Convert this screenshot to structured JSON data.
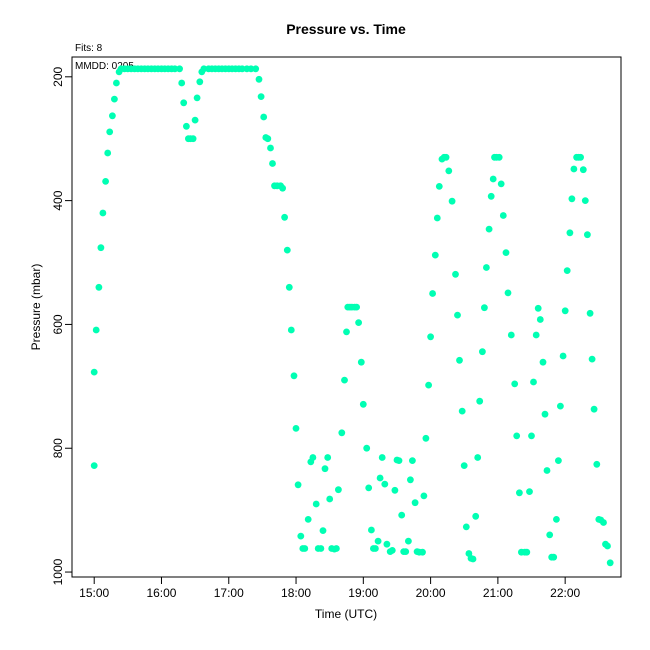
{
  "chart_data": {
    "type": "scatter",
    "title": "Pressure  vs. Time",
    "xlabel": "Time (UTC)",
    "ylabel": "Pressure (mbar)",
    "annotations": [
      "Fits: 8",
      "MMDD: 0205"
    ],
    "x_ticks": [
      "15:00",
      "16:00",
      "17:00",
      "18:00",
      "19:00",
      "20:00",
      "21:00",
      "22:00"
    ],
    "y_ticks": [
      200,
      400,
      600,
      800,
      1000
    ],
    "xlim_hours": [
      14.67,
      22.83
    ],
    "ylim": [
      1008,
      168
    ],
    "y_inverted": true,
    "grid": false,
    "marker_color": "#00FFB3",
    "points": [
      [
        15.0,
        828
      ],
      [
        15.0,
        677
      ],
      [
        15.03,
        609
      ],
      [
        15.07,
        540
      ],
      [
        15.1,
        476
      ],
      [
        15.13,
        420
      ],
      [
        15.17,
        369
      ],
      [
        15.2,
        323
      ],
      [
        15.23,
        289
      ],
      [
        15.27,
        263
      ],
      [
        15.3,
        236
      ],
      [
        15.33,
        210
      ],
      [
        15.37,
        192
      ],
      [
        15.4,
        187
      ],
      [
        15.45,
        187
      ],
      [
        15.5,
        187
      ],
      [
        15.55,
        187
      ],
      [
        15.6,
        187
      ],
      [
        15.65,
        187
      ],
      [
        15.7,
        187
      ],
      [
        15.75,
        187
      ],
      [
        15.8,
        187
      ],
      [
        15.85,
        187
      ],
      [
        15.9,
        187
      ],
      [
        15.95,
        187
      ],
      [
        16.0,
        187
      ],
      [
        16.05,
        187
      ],
      [
        16.1,
        187
      ],
      [
        16.15,
        187
      ],
      [
        16.2,
        187
      ],
      [
        16.27,
        187
      ],
      [
        16.3,
        210
      ],
      [
        16.33,
        242
      ],
      [
        16.37,
        280
      ],
      [
        16.4,
        300
      ],
      [
        16.43,
        300
      ],
      [
        16.47,
        300
      ],
      [
        16.5,
        270
      ],
      [
        16.53,
        234
      ],
      [
        16.57,
        208
      ],
      [
        16.6,
        192
      ],
      [
        16.63,
        187
      ],
      [
        16.7,
        187
      ],
      [
        16.75,
        187
      ],
      [
        16.8,
        187
      ],
      [
        16.85,
        187
      ],
      [
        16.9,
        187
      ],
      [
        16.95,
        187
      ],
      [
        17.0,
        187
      ],
      [
        17.05,
        187
      ],
      [
        17.1,
        187
      ],
      [
        17.15,
        187
      ],
      [
        17.2,
        187
      ],
      [
        17.27,
        187
      ],
      [
        17.33,
        187
      ],
      [
        17.4,
        187
      ],
      [
        17.45,
        204
      ],
      [
        17.48,
        232
      ],
      [
        17.52,
        265
      ],
      [
        17.55,
        298
      ],
      [
        17.58,
        300
      ],
      [
        17.62,
        315
      ],
      [
        17.65,
        340
      ],
      [
        17.68,
        376
      ],
      [
        17.72,
        376
      ],
      [
        17.77,
        376
      ],
      [
        17.8,
        380
      ],
      [
        17.83,
        427
      ],
      [
        17.87,
        480
      ],
      [
        17.9,
        540
      ],
      [
        17.93,
        609
      ],
      [
        17.97,
        683
      ],
      [
        18.0,
        768
      ],
      [
        18.03,
        859
      ],
      [
        18.07,
        942
      ],
      [
        18.1,
        962
      ],
      [
        18.13,
        962
      ],
      [
        18.18,
        915
      ],
      [
        18.22,
        822
      ],
      [
        18.25,
        815
      ],
      [
        18.3,
        890
      ],
      [
        18.33,
        962
      ],
      [
        18.37,
        962
      ],
      [
        18.4,
        933
      ],
      [
        18.43,
        833
      ],
      [
        18.47,
        815
      ],
      [
        18.5,
        882
      ],
      [
        18.53,
        962
      ],
      [
        18.57,
        963
      ],
      [
        18.6,
        962
      ],
      [
        18.63,
        867
      ],
      [
        18.68,
        775
      ],
      [
        18.72,
        690
      ],
      [
        18.75,
        612
      ],
      [
        18.77,
        572
      ],
      [
        18.8,
        572
      ],
      [
        18.83,
        572
      ],
      [
        18.87,
        572
      ],
      [
        18.9,
        572
      ],
      [
        18.93,
        597
      ],
      [
        18.97,
        661
      ],
      [
        19.0,
        729
      ],
      [
        19.05,
        800
      ],
      [
        19.08,
        864
      ],
      [
        19.12,
        932
      ],
      [
        19.15,
        962
      ],
      [
        19.18,
        962
      ],
      [
        19.22,
        950
      ],
      [
        19.25,
        848
      ],
      [
        19.28,
        815
      ],
      [
        19.32,
        858
      ],
      [
        19.35,
        955
      ],
      [
        19.4,
        967
      ],
      [
        19.43,
        965
      ],
      [
        19.47,
        868
      ],
      [
        19.5,
        819
      ],
      [
        19.53,
        820
      ],
      [
        19.57,
        908
      ],
      [
        19.6,
        967
      ],
      [
        19.63,
        967
      ],
      [
        19.67,
        950
      ],
      [
        19.7,
        851
      ],
      [
        19.73,
        820
      ],
      [
        19.77,
        888
      ],
      [
        19.8,
        967
      ],
      [
        19.83,
        968
      ],
      [
        19.88,
        968
      ],
      [
        19.9,
        877
      ],
      [
        19.93,
        784
      ],
      [
        19.97,
        698
      ],
      [
        20.0,
        620
      ],
      [
        20.03,
        550
      ],
      [
        20.07,
        488
      ],
      [
        20.1,
        428
      ],
      [
        20.13,
        377
      ],
      [
        20.17,
        333
      ],
      [
        20.2,
        330
      ],
      [
        20.23,
        330
      ],
      [
        20.27,
        352
      ],
      [
        20.32,
        401
      ],
      [
        20.37,
        519
      ],
      [
        20.4,
        585
      ],
      [
        20.43,
        658
      ],
      [
        20.47,
        740
      ],
      [
        20.5,
        828
      ],
      [
        20.53,
        927
      ],
      [
        20.57,
        970
      ],
      [
        20.6,
        978
      ],
      [
        20.63,
        979
      ],
      [
        20.67,
        910
      ],
      [
        20.7,
        815
      ],
      [
        20.73,
        724
      ],
      [
        20.77,
        644
      ],
      [
        20.8,
        573
      ],
      [
        20.83,
        508
      ],
      [
        20.87,
        446
      ],
      [
        20.9,
        393
      ],
      [
        20.93,
        365
      ],
      [
        20.95,
        330
      ],
      [
        20.98,
        330
      ],
      [
        21.02,
        330
      ],
      [
        21.05,
        373
      ],
      [
        21.08,
        424
      ],
      [
        21.12,
        484
      ],
      [
        21.15,
        549
      ],
      [
        21.2,
        617
      ],
      [
        21.25,
        696
      ],
      [
        21.28,
        780
      ],
      [
        21.32,
        872
      ],
      [
        21.35,
        968
      ],
      [
        21.4,
        968
      ],
      [
        21.43,
        968
      ],
      [
        21.47,
        870
      ],
      [
        21.5,
        780
      ],
      [
        21.53,
        693
      ],
      [
        21.57,
        617
      ],
      [
        21.6,
        574
      ],
      [
        21.63,
        592
      ],
      [
        21.67,
        661
      ],
      [
        21.7,
        745
      ],
      [
        21.73,
        836
      ],
      [
        21.77,
        940
      ],
      [
        21.8,
        976
      ],
      [
        21.83,
        976
      ],
      [
        21.87,
        915
      ],
      [
        21.9,
        820
      ],
      [
        21.93,
        732
      ],
      [
        21.97,
        651
      ],
      [
        22.0,
        578
      ],
      [
        22.03,
        513
      ],
      [
        22.07,
        452
      ],
      [
        22.1,
        397
      ],
      [
        22.13,
        349
      ],
      [
        22.17,
        330
      ],
      [
        22.2,
        330
      ],
      [
        22.23,
        330
      ],
      [
        22.27,
        350
      ],
      [
        22.3,
        400
      ],
      [
        22.33,
        455
      ],
      [
        22.37,
        582
      ],
      [
        22.4,
        656
      ],
      [
        22.43,
        737
      ],
      [
        22.47,
        826
      ],
      [
        22.5,
        915
      ],
      [
        22.53,
        916
      ],
      [
        22.57,
        920
      ],
      [
        22.6,
        955
      ],
      [
        22.63,
        958
      ],
      [
        22.67,
        985
      ]
    ]
  }
}
